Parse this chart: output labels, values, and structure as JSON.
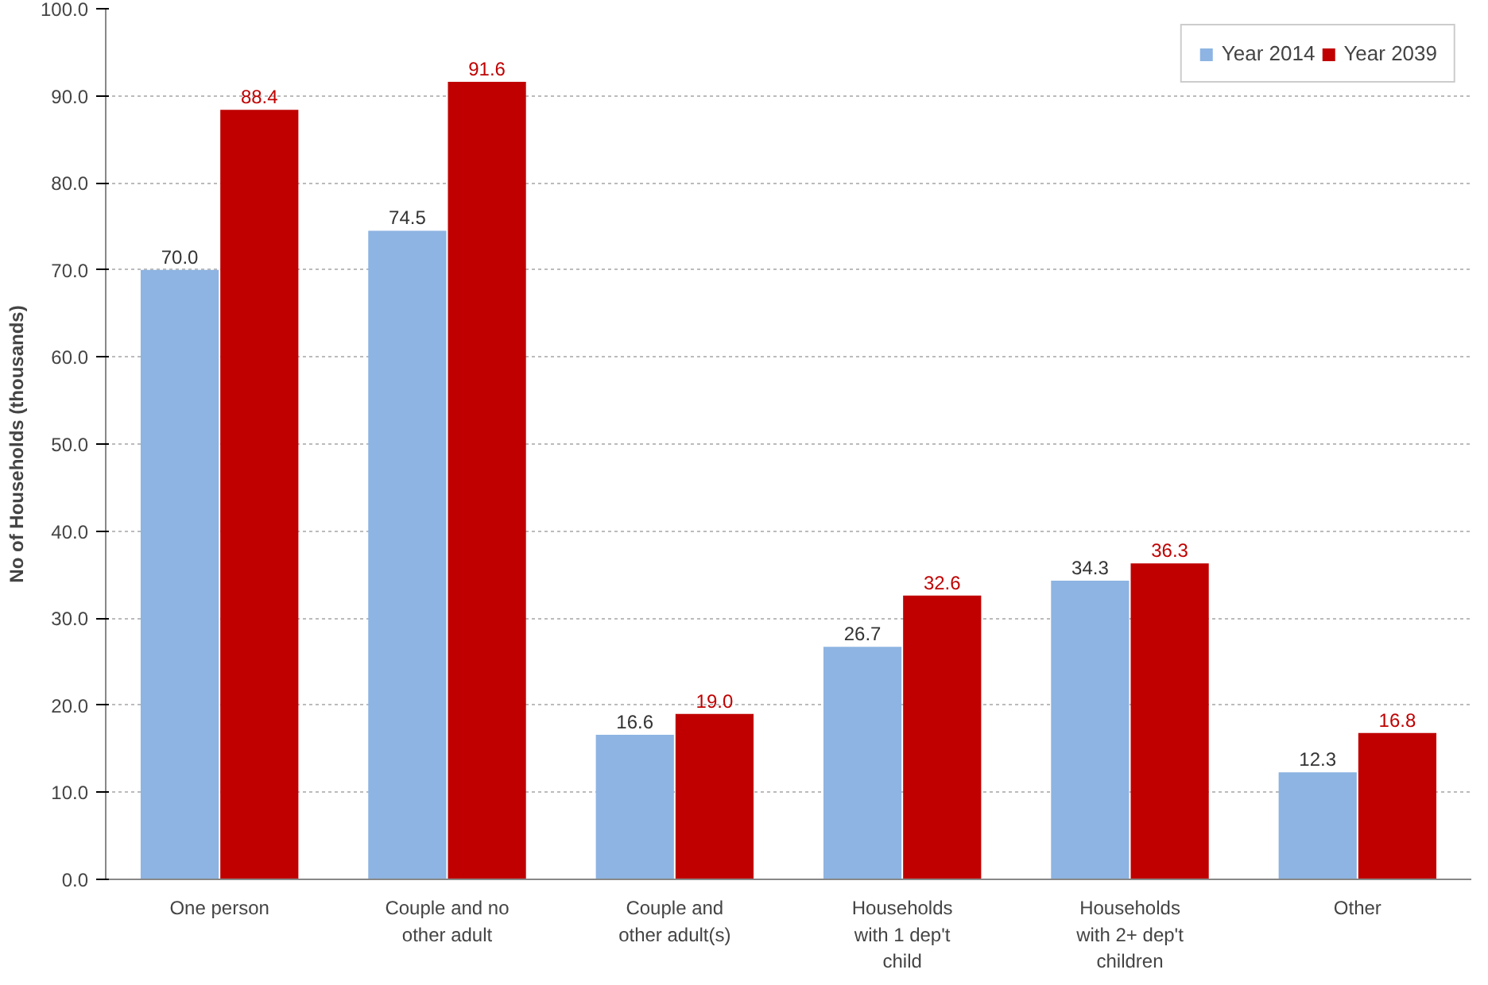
{
  "chart_data": {
    "type": "bar",
    "ylabel": "No of Households (thousands)",
    "categories": [
      "One person",
      "Couple and no\nother adult",
      "Couple and\nother adult(s)",
      "Households\nwith 1 dep't\nchild",
      "Households\nwith 2+ dep't\nchildren",
      "Other"
    ],
    "series": [
      {
        "name": "Year 2014",
        "color": "#8db4e2",
        "values": [
          70.0,
          74.5,
          16.6,
          26.7,
          34.3,
          12.3
        ],
        "value_labels": [
          "70.0",
          "74.5",
          "16.6",
          "26.7",
          "34.3",
          "12.3"
        ]
      },
      {
        "name": "Year 2039",
        "color": "#c00000",
        "values": [
          88.4,
          91.6,
          19.0,
          32.6,
          36.3,
          16.8
        ],
        "value_labels": [
          "88.4",
          "91.6",
          "19.0",
          "32.6",
          "36.3",
          "16.8"
        ]
      }
    ],
    "ylim": [
      0,
      100
    ],
    "yticks": [
      {
        "value": 0,
        "label": "0.0"
      },
      {
        "value": 10,
        "label": "10.0"
      },
      {
        "value": 20,
        "label": "20.0"
      },
      {
        "value": 30,
        "label": "30.0"
      },
      {
        "value": 40,
        "label": "40.0"
      },
      {
        "value": 50,
        "label": "50.0"
      },
      {
        "value": 60,
        "label": "60.0"
      },
      {
        "value": 70,
        "label": "70.0"
      },
      {
        "value": 80,
        "label": "80.0"
      },
      {
        "value": 90,
        "label": "90.0"
      },
      {
        "value": 100,
        "label": "100.0"
      }
    ],
    "grid": "y",
    "legend": "top right"
  }
}
